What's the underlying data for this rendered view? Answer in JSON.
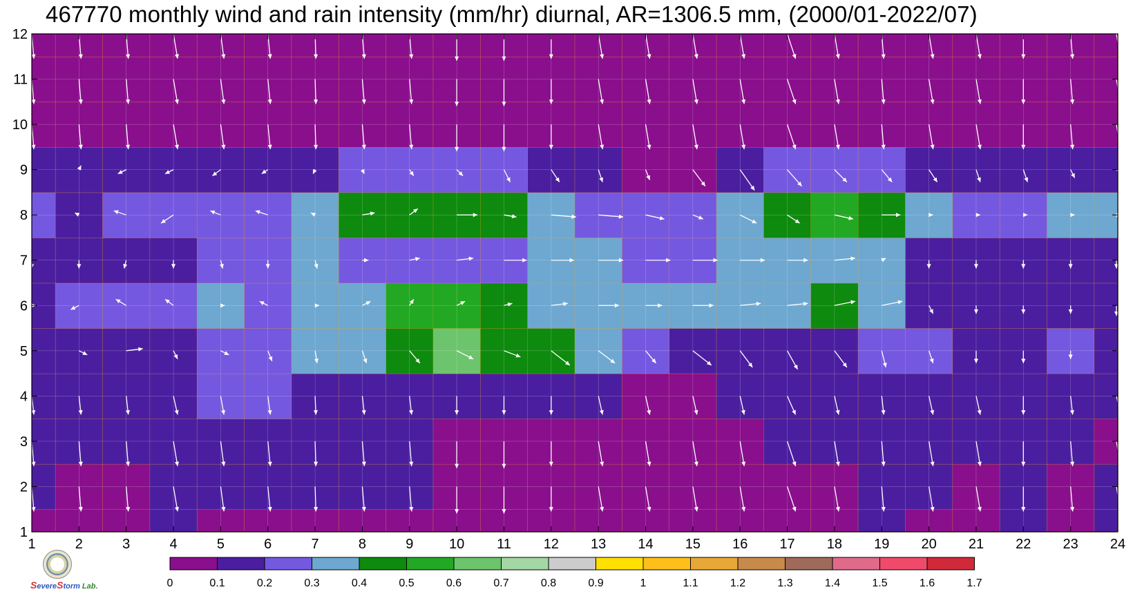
{
  "title": "467770 monthly wind and rain intensity (mm/hr) diurnal, AR=1306.5 mm, (2000/01-2022/07)",
  "logo": {
    "brand_s1": "S",
    "brand_w1": "evere",
    "brand_s2": "S",
    "brand_w2": "torm",
    "brand_lab": "Lab."
  },
  "chart_data": {
    "type": "heatmap",
    "title": "467770 monthly wind and rain intensity (mm/hr) diurnal, AR=1306.5 mm, (2000/01-2022/07)",
    "x": [
      1,
      2,
      3,
      4,
      5,
      6,
      7,
      8,
      9,
      10,
      11,
      12,
      13,
      14,
      15,
      16,
      17,
      18,
      19,
      20,
      21,
      22,
      23,
      24
    ],
    "y": [
      1,
      2,
      3,
      4,
      5,
      6,
      7,
      8,
      9,
      10,
      11,
      12
    ],
    "xlim": [
      1,
      24
    ],
    "ylim": [
      1,
      12
    ],
    "x_ticks": [
      "1",
      "2",
      "3",
      "4",
      "5",
      "6",
      "7",
      "8",
      "9",
      "10",
      "11",
      "12",
      "13",
      "14",
      "15",
      "16",
      "17",
      "18",
      "19",
      "20",
      "21",
      "22",
      "23",
      "24"
    ],
    "y_ticks": [
      "1",
      "2",
      "3",
      "4",
      "5",
      "6",
      "7",
      "8",
      "9",
      "10",
      "11",
      "12"
    ],
    "grid": true,
    "rain_intensity_mm_hr": [
      [
        0.05,
        0.05,
        0.05,
        0.12,
        0.05,
        0.05,
        0.05,
        0.05,
        0.05,
        0.05,
        0.05,
        0.05,
        0.05,
        0.05,
        0.05,
        0.05,
        0.05,
        0.05,
        0.12,
        0.08,
        0.05,
        0.12,
        0.05,
        0.15
      ],
      [
        0.12,
        0.05,
        0.08,
        0.12,
        0.12,
        0.12,
        0.15,
        0.12,
        0.12,
        0.05,
        0.05,
        0.05,
        0.05,
        0.05,
        0.05,
        0.05,
        0.08,
        0.08,
        0.12,
        0.12,
        0.05,
        0.12,
        0.08,
        0.15
      ],
      [
        0.15,
        0.15,
        0.15,
        0.15,
        0.15,
        0.15,
        0.15,
        0.15,
        0.12,
        0.08,
        0.08,
        0.06,
        0.05,
        0.05,
        0.05,
        0.08,
        0.12,
        0.12,
        0.15,
        0.15,
        0.15,
        0.15,
        0.15,
        0.05
      ],
      [
        0.15,
        0.15,
        0.15,
        0.15,
        0.2,
        0.22,
        0.15,
        0.15,
        0.15,
        0.15,
        0.15,
        0.15,
        0.15,
        0.05,
        0.07,
        0.12,
        0.15,
        0.15,
        0.15,
        0.15,
        0.15,
        0.15,
        0.15,
        0.15
      ],
      [
        0.15,
        0.15,
        0.15,
        0.15,
        0.25,
        0.25,
        0.3,
        0.32,
        0.42,
        0.62,
        0.48,
        0.45,
        0.3,
        0.22,
        0.15,
        0.15,
        0.15,
        0.18,
        0.25,
        0.25,
        0.15,
        0.15,
        0.25,
        0.15
      ],
      [
        0.18,
        0.25,
        0.25,
        0.25,
        0.32,
        0.28,
        0.3,
        0.3,
        0.5,
        0.55,
        0.42,
        0.32,
        0.3,
        0.3,
        0.3,
        0.35,
        0.35,
        0.42,
        0.32,
        0.15,
        0.15,
        0.15,
        0.15,
        0.15
      ],
      [
        0.15,
        0.15,
        0.15,
        0.15,
        0.25,
        0.25,
        0.35,
        0.25,
        0.25,
        0.25,
        0.25,
        0.32,
        0.3,
        0.25,
        0.25,
        0.3,
        0.32,
        0.32,
        0.32,
        0.15,
        0.15,
        0.15,
        0.15,
        0.15
      ],
      [
        0.22,
        0.15,
        0.25,
        0.25,
        0.25,
        0.28,
        0.35,
        0.42,
        0.42,
        0.48,
        0.45,
        0.3,
        0.28,
        0.25,
        0.25,
        0.32,
        0.42,
        0.52,
        0.48,
        0.3,
        0.28,
        0.25,
        0.32,
        0.3
      ],
      [
        0.15,
        0.15,
        0.15,
        0.15,
        0.15,
        0.15,
        0.15,
        0.2,
        0.22,
        0.25,
        0.22,
        0.15,
        0.15,
        0.05,
        0.05,
        0.15,
        0.25,
        0.22,
        0.22,
        0.15,
        0.15,
        0.15,
        0.15,
        0.15
      ],
      [
        0.05,
        0.05,
        0.05,
        0.05,
        0.05,
        0.05,
        0.05,
        0.05,
        0.05,
        0.05,
        0.05,
        0.05,
        0.05,
        0.05,
        0.05,
        0.05,
        0.05,
        0.05,
        0.05,
        0.05,
        0.05,
        0.05,
        0.05,
        0.05
      ],
      [
        0.05,
        0.05,
        0.05,
        0.05,
        0.05,
        0.05,
        0.05,
        0.05,
        0.05,
        0.05,
        0.05,
        0.05,
        0.05,
        0.05,
        0.05,
        0.05,
        0.05,
        0.05,
        0.05,
        0.05,
        0.05,
        0.05,
        0.05,
        0.05
      ],
      [
        0.05,
        0.05,
        0.05,
        0.05,
        0.05,
        0.05,
        0.05,
        0.05,
        0.05,
        0.05,
        0.05,
        0.05,
        0.05,
        0.05,
        0.05,
        0.05,
        0.05,
        0.05,
        0.05,
        0.05,
        0.05,
        0.05,
        0.05,
        0.05
      ]
    ],
    "wind_u": [
      [
        0.05,
        0.05,
        0.05,
        0.1,
        0.08,
        0.06,
        0.02,
        0.05,
        0.05,
        0.0,
        0.0,
        0.0,
        0.1,
        0.1,
        0.1,
        0.1,
        0.2,
        0.1,
        0.05,
        0.1,
        0.1,
        0.0,
        0.05,
        0.1
      ],
      [
        0.05,
        0.05,
        0.05,
        0.1,
        0.08,
        0.06,
        0.02,
        0.05,
        0.05,
        0.0,
        0.0,
        0.0,
        0.1,
        0.1,
        0.1,
        0.1,
        0.2,
        0.1,
        0.05,
        0.1,
        0.1,
        0.0,
        0.05,
        0.1
      ],
      [
        0.05,
        0.05,
        0.05,
        0.1,
        0.08,
        0.06,
        0.02,
        0.05,
        0.05,
        0.0,
        0.0,
        0.0,
        0.1,
        0.1,
        0.1,
        0.1,
        0.2,
        0.1,
        0.05,
        0.1,
        0.1,
        0.0,
        0.05,
        0.1
      ],
      [
        0.05,
        0.05,
        0.05,
        0.1,
        0.08,
        0.06,
        0.02,
        0.05,
        0.05,
        0.0,
        0.0,
        0.0,
        0.1,
        0.1,
        0.1,
        0.1,
        0.2,
        0.1,
        0.05,
        0.1,
        0.1,
        0.0,
        0.05,
        0.1
      ],
      [
        0.0,
        0.2,
        0.4,
        0.1,
        0.2,
        0.1,
        0.05,
        0.1,
        0.25,
        0.4,
        0.4,
        0.45,
        0.4,
        0.25,
        0.45,
        0.3,
        0.25,
        0.3,
        0.1,
        0.1,
        0.0,
        0.0,
        0.0,
        0.2
      ],
      [
        0.1,
        -0.2,
        -0.25,
        -0.2,
        0.1,
        -0.2,
        0.1,
        0.2,
        0.1,
        0.2,
        0.2,
        0.4,
        0.5,
        0.4,
        0.5,
        0.5,
        0.5,
        0.5,
        0.5,
        0.1,
        0.0,
        0.0,
        0.0,
        0.0
      ],
      [
        0.0,
        0.0,
        -0.05,
        0.0,
        0.05,
        0.0,
        0.05,
        0.15,
        0.25,
        0.4,
        0.55,
        0.55,
        0.6,
        0.6,
        0.6,
        0.6,
        0.5,
        0.5,
        0.1,
        0.0,
        0.0,
        0.0,
        0.0,
        0.0
      ],
      [
        -0.1,
        -0.1,
        -0.3,
        -0.3,
        -0.25,
        -0.3,
        -0.1,
        0.3,
        0.2,
        0.5,
        0.3,
        0.6,
        0.6,
        0.45,
        0.25,
        0.4,
        0.3,
        0.45,
        0.45,
        0.1,
        0.1,
        0.1,
        0.1,
        0.1
      ],
      [
        -0.1,
        0.05,
        -0.2,
        -0.2,
        -0.2,
        -0.15,
        -0.05,
        0.05,
        0.1,
        0.15,
        0.15,
        0.2,
        0.1,
        0.1,
        0.3,
        0.35,
        0.35,
        0.3,
        0.25,
        0.2,
        0.1,
        0.1,
        0.1,
        0.2
      ],
      [
        0.05,
        0.05,
        0.05,
        0.1,
        0.08,
        0.06,
        0.02,
        0.05,
        0.05,
        0.0,
        0.0,
        0.0,
        0.1,
        0.1,
        0.1,
        0.1,
        0.2,
        0.1,
        0.05,
        0.1,
        0.1,
        0.0,
        0.05,
        0.1
      ],
      [
        0.05,
        0.05,
        0.05,
        0.1,
        0.08,
        0.06,
        0.02,
        0.05,
        0.05,
        0.0,
        0.0,
        0.0,
        0.1,
        0.1,
        0.1,
        0.1,
        0.2,
        0.1,
        0.05,
        0.1,
        0.1,
        0.0,
        0.05,
        0.1
      ],
      [
        0.05,
        0.05,
        0.05,
        0.1,
        0.08,
        0.06,
        0.02,
        0.05,
        0.05,
        0.0,
        0.0,
        0.0,
        0.1,
        0.1,
        0.1,
        0.1,
        0.2,
        0.1,
        0.05,
        0.1,
        0.1,
        0.0,
        0.05,
        0.1
      ]
    ],
    "wind_v": [
      [
        -0.6,
        -0.6,
        -0.6,
        -0.6,
        -0.6,
        -0.6,
        -0.6,
        -0.6,
        -0.6,
        -0.65,
        -0.65,
        -0.6,
        -0.6,
        -0.6,
        -0.6,
        -0.6,
        -0.6,
        -0.6,
        -0.6,
        -0.6,
        -0.6,
        -0.6,
        -0.6,
        -0.6
      ],
      [
        -0.6,
        -0.6,
        -0.6,
        -0.6,
        -0.6,
        -0.6,
        -0.6,
        -0.6,
        -0.6,
        -0.65,
        -0.65,
        -0.6,
        -0.6,
        -0.6,
        -0.6,
        -0.6,
        -0.6,
        -0.6,
        -0.6,
        -0.6,
        -0.6,
        -0.6,
        -0.6,
        -0.6
      ],
      [
        -0.6,
        -0.6,
        -0.6,
        -0.6,
        -0.6,
        -0.6,
        -0.6,
        -0.6,
        -0.6,
        -0.65,
        -0.65,
        -0.6,
        -0.6,
        -0.6,
        -0.6,
        -0.6,
        -0.6,
        -0.6,
        -0.6,
        -0.6,
        -0.6,
        -0.6,
        -0.6,
        -0.6
      ],
      [
        -0.45,
        -0.45,
        -0.45,
        -0.45,
        -0.45,
        -0.45,
        -0.45,
        -0.45,
        -0.45,
        -0.45,
        -0.45,
        -0.45,
        -0.45,
        -0.45,
        -0.45,
        -0.45,
        -0.45,
        -0.45,
        -0.45,
        -0.45,
        -0.45,
        -0.45,
        -0.45,
        -0.45
      ],
      [
        0.0,
        -0.1,
        0.05,
        -0.2,
        -0.1,
        -0.25,
        -0.3,
        -0.3,
        -0.3,
        -0.2,
        -0.15,
        -0.35,
        -0.3,
        -0.3,
        -0.35,
        -0.4,
        -0.45,
        -0.4,
        -0.4,
        -0.3,
        -0.3,
        -0.3,
        -0.2,
        0.0
      ],
      [
        0.0,
        -0.1,
        0.15,
        0.15,
        0.0,
        0.1,
        0.0,
        0.1,
        0.15,
        0.1,
        0.05,
        0.05,
        0.0,
        0.0,
        0.0,
        0.05,
        0.05,
        0.1,
        0.1,
        -0.2,
        -0.2,
        -0.2,
        -0.2,
        -0.25
      ],
      [
        -0.2,
        -0.2,
        -0.2,
        -0.2,
        -0.2,
        -0.2,
        -0.2,
        0.0,
        0.05,
        0.05,
        0.0,
        0.0,
        0.0,
        0.0,
        0.0,
        0.0,
        0.0,
        0.05,
        0.05,
        -0.2,
        -0.2,
        -0.2,
        -0.2,
        -0.2
      ],
      [
        0.1,
        0.05,
        0.1,
        -0.2,
        0.1,
        0.1,
        0.05,
        0.05,
        0.15,
        0.0,
        -0.05,
        -0.05,
        -0.05,
        -0.1,
        -0.1,
        -0.2,
        -0.2,
        -0.1,
        0.0,
        0.0,
        0.0,
        0.0,
        0.0,
        0.0
      ],
      [
        -0.15,
        0.1,
        -0.1,
        -0.1,
        -0.15,
        -0.1,
        -0.1,
        -0.1,
        -0.15,
        -0.15,
        -0.3,
        -0.3,
        -0.3,
        -0.25,
        -0.4,
        -0.5,
        -0.4,
        -0.3,
        -0.3,
        -0.3,
        -0.3,
        -0.3,
        -0.2,
        -0.2
      ],
      [
        -0.6,
        -0.6,
        -0.6,
        -0.6,
        -0.6,
        -0.6,
        -0.6,
        -0.6,
        -0.6,
        -0.65,
        -0.65,
        -0.6,
        -0.6,
        -0.6,
        -0.6,
        -0.6,
        -0.6,
        -0.6,
        -0.6,
        -0.6,
        -0.6,
        -0.6,
        -0.6,
        -0.6
      ],
      [
        -0.6,
        -0.6,
        -0.6,
        -0.6,
        -0.6,
        -0.6,
        -0.6,
        -0.6,
        -0.6,
        -0.65,
        -0.65,
        -0.6,
        -0.6,
        -0.6,
        -0.6,
        -0.6,
        -0.6,
        -0.6,
        -0.6,
        -0.6,
        -0.6,
        -0.6,
        -0.6,
        -0.6
      ],
      [
        -0.6,
        -0.6,
        -0.6,
        -0.6,
        -0.6,
        -0.6,
        -0.6,
        -0.6,
        -0.6,
        -0.65,
        -0.65,
        -0.6,
        -0.6,
        -0.6,
        -0.6,
        -0.6,
        -0.6,
        -0.6,
        -0.6,
        -0.6,
        -0.6,
        -0.6,
        -0.6,
        -0.6
      ]
    ],
    "colorbar": {
      "levels": [
        0,
        0.1,
        0.2,
        0.3,
        0.4,
        0.5,
        0.6,
        0.7,
        0.8,
        0.9,
        1,
        1.1,
        1.2,
        1.3,
        1.4,
        1.5,
        1.6,
        1.7
      ],
      "labels": [
        "0",
        "0.1",
        "0.2",
        "0.3",
        "0.4",
        "0.5",
        "0.6",
        "0.7",
        "0.8",
        "0.9",
        "1",
        "1.1",
        "1.2",
        "1.3",
        "1.4",
        "1.5",
        "1.6",
        "1.7"
      ],
      "colors": [
        "#8a0f8c",
        "#4b1ea0",
        "#7558e0",
        "#6ea8d0",
        "#0e8a0e",
        "#22a822",
        "#6cc46c",
        "#a3d7a3",
        "#cccccc",
        "#ffe000",
        "#ffbf1a",
        "#e8a838",
        "#c88a4a",
        "#9e6a5a",
        "#e06a8a",
        "#f04a6a",
        "#d02a3a"
      ]
    },
    "contour_color": "#f0a020",
    "wind_arrow_color": "#ffffff",
    "grid_color": "#ffffff"
  }
}
